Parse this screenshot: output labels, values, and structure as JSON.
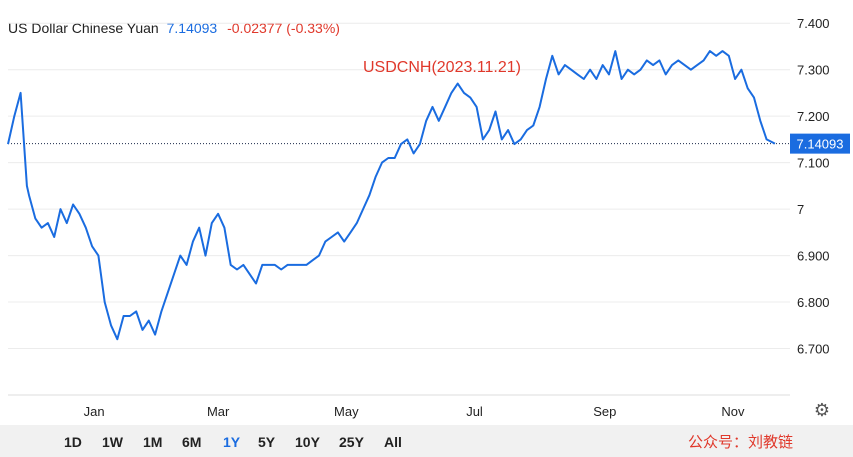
{
  "header": {
    "pair_name": "US Dollar Chinese Yuan",
    "price": "7.14093",
    "change": "-0.02377 (-0.33%)"
  },
  "timeframes": {
    "items": [
      "1D",
      "1W",
      "1M",
      "6M",
      "1Y",
      "5Y",
      "10Y",
      "25Y",
      "All"
    ],
    "active": "1Y"
  },
  "watermark": "公众号：刘教链",
  "settings_icon": "gear-icon",
  "colors": {
    "line": "#1a6ce0",
    "last_price_bg": "#1a6ce0",
    "annotation": "#e0382b"
  },
  "chart_data": {
    "type": "line",
    "title": "USDCNH(2023.11.21)",
    "xlabel": "",
    "ylabel": "",
    "ylim": [
      6.6,
      7.45
    ],
    "y_ticks": [
      6.7,
      6.8,
      6.9,
      7.0,
      7.1,
      7.2,
      7.3,
      7.4
    ],
    "y_tick_labels": [
      "6.700",
      "6.800",
      "6.900",
      "7",
      "7.100",
      "7.200",
      "7.300",
      "7.400"
    ],
    "x_tick_labels": [
      "Jan",
      "Mar",
      "May",
      "Jul",
      "Sep",
      "Nov"
    ],
    "x_ticks": [
      "2023-01-01",
      "2023-03-01",
      "2023-05-01",
      "2023-07-01",
      "2023-09-01",
      "2023-11-01"
    ],
    "xlim": [
      "2022-11-21",
      "2023-11-21"
    ],
    "last_value": 7.14093,
    "last_value_label": "7.14093",
    "grid": "horizontal",
    "series": [
      {
        "x": [
          "2022-11-21",
          "2022-11-24",
          "2022-11-27",
          "2022-11-30",
          "2022-12-01",
          "2022-12-04",
          "2022-12-07",
          "2022-12-10",
          "2022-12-13",
          "2022-12-16",
          "2022-12-19",
          "2022-12-22",
          "2022-12-25",
          "2022-12-28",
          "2022-12-31",
          "2023-01-03",
          "2023-01-06",
          "2023-01-09",
          "2023-01-12",
          "2023-01-15",
          "2023-01-18",
          "2023-01-21",
          "2023-01-24",
          "2023-01-27",
          "2023-01-30",
          "2023-02-02",
          "2023-02-05",
          "2023-02-08",
          "2023-02-11",
          "2023-02-14",
          "2023-02-17",
          "2023-02-20",
          "2023-02-23",
          "2023-02-26",
          "2023-03-01",
          "2023-03-04",
          "2023-03-07",
          "2023-03-10",
          "2023-03-13",
          "2023-03-16",
          "2023-03-19",
          "2023-03-22",
          "2023-03-25",
          "2023-03-28",
          "2023-03-31",
          "2023-04-03",
          "2023-04-06",
          "2023-04-09",
          "2023-04-12",
          "2023-04-15",
          "2023-04-18",
          "2023-04-21",
          "2023-04-24",
          "2023-04-27",
          "2023-04-30",
          "2023-05-03",
          "2023-05-06",
          "2023-05-09",
          "2023-05-12",
          "2023-05-15",
          "2023-05-18",
          "2023-05-21",
          "2023-05-24",
          "2023-05-27",
          "2023-05-30",
          "2023-06-02",
          "2023-06-05",
          "2023-06-08",
          "2023-06-11",
          "2023-06-14",
          "2023-06-17",
          "2023-06-20",
          "2023-06-23",
          "2023-06-26",
          "2023-06-29",
          "2023-07-02",
          "2023-07-05",
          "2023-07-08",
          "2023-07-11",
          "2023-07-14",
          "2023-07-17",
          "2023-07-20",
          "2023-07-23",
          "2023-07-26",
          "2023-07-29",
          "2023-08-01",
          "2023-08-04",
          "2023-08-07",
          "2023-08-10",
          "2023-08-13",
          "2023-08-16",
          "2023-08-19",
          "2023-08-22",
          "2023-08-25",
          "2023-08-28",
          "2023-08-31",
          "2023-09-03",
          "2023-09-06",
          "2023-09-09",
          "2023-09-12",
          "2023-09-15",
          "2023-09-18",
          "2023-09-21",
          "2023-09-24",
          "2023-09-27",
          "2023-09-30",
          "2023-10-03",
          "2023-10-06",
          "2023-10-09",
          "2023-10-12",
          "2023-10-15",
          "2023-10-18",
          "2023-10-21",
          "2023-10-24",
          "2023-10-27",
          "2023-10-30",
          "2023-11-02",
          "2023-11-05",
          "2023-11-08",
          "2023-11-11",
          "2023-11-14",
          "2023-11-17",
          "2023-11-21"
        ],
        "values": [
          7.14,
          7.2,
          7.25,
          7.05,
          7.03,
          6.98,
          6.96,
          6.97,
          6.94,
          7.0,
          6.97,
          7.01,
          6.99,
          6.96,
          6.92,
          6.9,
          6.8,
          6.75,
          6.72,
          6.77,
          6.77,
          6.78,
          6.74,
          6.76,
          6.73,
          6.78,
          6.82,
          6.86,
          6.9,
          6.88,
          6.93,
          6.96,
          6.9,
          6.97,
          6.99,
          6.96,
          6.88,
          6.87,
          6.88,
          6.86,
          6.84,
          6.88,
          6.88,
          6.88,
          6.87,
          6.88,
          6.88,
          6.88,
          6.88,
          6.89,
          6.9,
          6.93,
          6.94,
          6.95,
          6.93,
          6.95,
          6.97,
          7.0,
          7.03,
          7.07,
          7.1,
          7.11,
          7.11,
          7.14,
          7.15,
          7.12,
          7.14,
          7.19,
          7.22,
          7.19,
          7.22,
          7.25,
          7.27,
          7.25,
          7.24,
          7.22,
          7.15,
          7.17,
          7.21,
          7.15,
          7.17,
          7.14,
          7.15,
          7.17,
          7.18,
          7.22,
          7.28,
          7.33,
          7.29,
          7.31,
          7.3,
          7.29,
          7.28,
          7.3,
          7.28,
          7.31,
          7.29,
          7.34,
          7.28,
          7.3,
          7.29,
          7.3,
          7.32,
          7.31,
          7.32,
          7.29,
          7.31,
          7.32,
          7.31,
          7.3,
          7.31,
          7.32,
          7.34,
          7.33,
          7.34,
          7.33,
          7.28,
          7.3,
          7.26,
          7.24,
          7.19,
          7.15,
          7.14093
        ]
      }
    ]
  }
}
